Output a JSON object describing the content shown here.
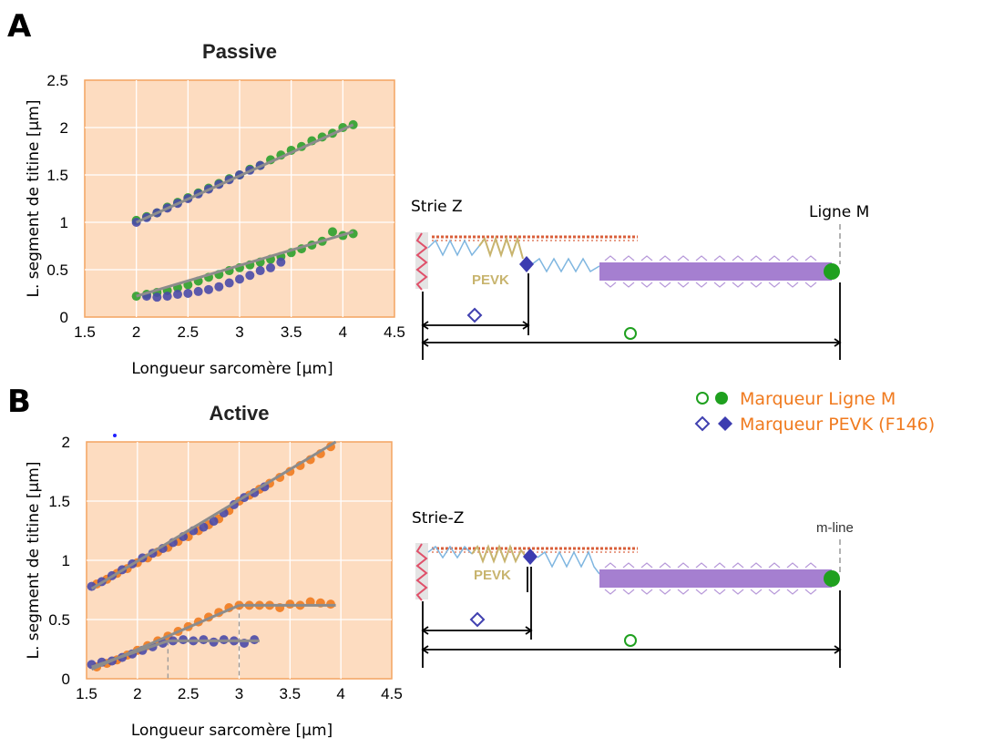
{
  "panels": {
    "a_label": "A",
    "b_label": "B"
  },
  "colors": {
    "plot_bg": "#fddcc0",
    "plot_border": "#f4a460",
    "grid": "#ffffff",
    "green": "#2ca02c",
    "blue": "#4a4aa8",
    "orange": "#f07a1e",
    "fit_line": "#8c8c8c",
    "thick_filament": "#a57fd0",
    "actin": "#d9603b",
    "spring": "#7fb6e0",
    "pevk": "#c8b46e",
    "zdisc": "#e0506a",
    "legend_text": "#f07a1e"
  },
  "chart_data": [
    {
      "type": "scatter",
      "title": "Passive",
      "xlabel": "Longueur sarcomère [μm]",
      "ylabel": "L. segment de titine [μm]",
      "xlim": [
        1.5,
        4.5
      ],
      "ylim": [
        0,
        2.5
      ],
      "xticks": [
        "1.5",
        "2",
        "2.5",
        "3",
        "3.5",
        "4",
        "4.5"
      ],
      "yticks": [
        "0",
        "0.5",
        "1",
        "1.5",
        "2",
        "2.5"
      ],
      "grid": true,
      "series": [
        {
          "marker": "green",
          "x": [
            2.0,
            2.1,
            2.2,
            2.3,
            2.4,
            2.5,
            2.6,
            2.7,
            2.8,
            2.9,
            3.0,
            3.1,
            3.2,
            3.3,
            3.4,
            3.5,
            3.6,
            3.7,
            3.8,
            3.9,
            4.0,
            4.1
          ],
          "y": [
            1.02,
            1.06,
            1.1,
            1.16,
            1.21,
            1.26,
            1.31,
            1.36,
            1.41,
            1.46,
            1.5,
            1.56,
            1.6,
            1.66,
            1.71,
            1.76,
            1.8,
            1.86,
            1.9,
            1.94,
            2.0,
            2.03
          ]
        },
        {
          "marker": "blue",
          "x": [
            2.0,
            2.1,
            2.2,
            2.3,
            2.4,
            2.5,
            2.6,
            2.7,
            2.8,
            2.9,
            3.0,
            3.1,
            3.2
          ],
          "y": [
            1.0,
            1.05,
            1.1,
            1.15,
            1.2,
            1.25,
            1.3,
            1.35,
            1.4,
            1.45,
            1.5,
            1.55,
            1.6
          ]
        },
        {
          "marker": "green",
          "x": [
            2.0,
            2.1,
            2.2,
            2.3,
            2.4,
            2.5,
            2.6,
            2.7,
            2.8,
            2.9,
            3.0,
            3.1,
            3.2,
            3.3,
            3.4,
            3.5,
            3.6,
            3.7,
            3.8,
            3.9,
            4.0,
            4.1
          ],
          "y": [
            0.22,
            0.24,
            0.26,
            0.28,
            0.31,
            0.34,
            0.38,
            0.42,
            0.45,
            0.49,
            0.52,
            0.55,
            0.58,
            0.61,
            0.64,
            0.68,
            0.72,
            0.76,
            0.8,
            0.9,
            0.86,
            0.88
          ]
        },
        {
          "marker": "blue",
          "x": [
            2.1,
            2.2,
            2.3,
            2.4,
            2.5,
            2.6,
            2.7,
            2.8,
            2.9,
            3.0,
            3.1,
            3.2,
            3.3,
            3.4
          ],
          "y": [
            0.22,
            0.21,
            0.22,
            0.24,
            0.25,
            0.27,
            0.29,
            0.32,
            0.36,
            0.4,
            0.44,
            0.49,
            0.52,
            0.58
          ]
        }
      ],
      "fit_lines": [
        {
          "x": [
            2.0,
            4.1
          ],
          "y": [
            1.0,
            2.03
          ]
        },
        {
          "x": [
            2.0,
            4.1
          ],
          "y": [
            0.22,
            0.9
          ]
        }
      ]
    },
    {
      "type": "scatter",
      "title": "Active",
      "xlabel": "Longueur sarcomère [μm]",
      "ylabel": "L. segment de titine [μm]",
      "xlim": [
        1.5,
        4.5
      ],
      "ylim": [
        0,
        2
      ],
      "xticks": [
        "1.5",
        "2",
        "2.5",
        "3",
        "3.5",
        "4",
        "4.5"
      ],
      "yticks": [
        "0",
        "0.5",
        "1",
        "1.5",
        "2"
      ],
      "grid": true,
      "series": [
        {
          "marker": "orange",
          "x": [
            1.6,
            1.7,
            1.8,
            1.9,
            2.0,
            2.1,
            2.2,
            2.3,
            2.4,
            2.5,
            2.6,
            2.7,
            2.8,
            2.9,
            3.0,
            3.1,
            3.2,
            3.3,
            3.4,
            3.5,
            3.6,
            3.7,
            3.8,
            3.9
          ],
          "y": [
            0.8,
            0.84,
            0.89,
            0.93,
            0.98,
            1.02,
            1.07,
            1.11,
            1.16,
            1.2,
            1.25,
            1.3,
            1.35,
            1.42,
            1.5,
            1.55,
            1.6,
            1.65,
            1.7,
            1.75,
            1.8,
            1.85,
            1.9,
            1.96
          ]
        },
        {
          "marker": "blue",
          "x": [
            1.55,
            1.65,
            1.75,
            1.85,
            1.95,
            2.05,
            2.15,
            2.25,
            2.35,
            2.45,
            2.55,
            2.65,
            2.75,
            2.85,
            2.95,
            3.05,
            3.15,
            3.25
          ],
          "y": [
            0.78,
            0.82,
            0.87,
            0.92,
            0.97,
            1.02,
            1.06,
            1.1,
            1.15,
            1.2,
            1.25,
            1.28,
            1.33,
            1.4,
            1.47,
            1.53,
            1.57,
            1.62
          ]
        },
        {
          "marker": "orange",
          "x": [
            1.6,
            1.7,
            1.8,
            1.9,
            2.0,
            2.1,
            2.2,
            2.3,
            2.4,
            2.5,
            2.6,
            2.7,
            2.8,
            2.9,
            3.0,
            3.1,
            3.2,
            3.3,
            3.4,
            3.5,
            3.6,
            3.7,
            3.8,
            3.9
          ],
          "y": [
            0.1,
            0.13,
            0.16,
            0.2,
            0.24,
            0.28,
            0.32,
            0.36,
            0.4,
            0.44,
            0.48,
            0.52,
            0.56,
            0.6,
            0.62,
            0.62,
            0.62,
            0.62,
            0.6,
            0.63,
            0.62,
            0.65,
            0.64,
            0.63
          ]
        },
        {
          "marker": "blue",
          "x": [
            1.55,
            1.65,
            1.75,
            1.85,
            1.95,
            2.05,
            2.15,
            2.25,
            2.35,
            2.45,
            2.55,
            2.65,
            2.75,
            2.85,
            2.95,
            3.05,
            3.15
          ],
          "y": [
            0.12,
            0.14,
            0.15,
            0.18,
            0.21,
            0.24,
            0.27,
            0.3,
            0.32,
            0.33,
            0.32,
            0.33,
            0.31,
            0.33,
            0.32,
            0.3,
            0.33
          ]
        }
      ],
      "fit_lines": [
        {
          "x": [
            1.55,
            3.95
          ],
          "y": [
            0.76,
            2.0
          ]
        },
        {
          "x": [
            1.55,
            3.0
          ],
          "y": [
            0.08,
            0.62
          ]
        },
        {
          "x": [
            3.0,
            3.95
          ],
          "y": [
            0.62,
            0.62
          ]
        },
        {
          "x": [
            1.55,
            2.3
          ],
          "y": [
            0.1,
            0.32
          ]
        },
        {
          "x": [
            2.3,
            3.2
          ],
          "y": [
            0.32,
            0.32
          ]
        }
      ],
      "dashed_markers": [
        {
          "x": 2.3,
          "y_top": 0.32
        },
        {
          "x": 3.0,
          "y_top": 0.62
        }
      ]
    }
  ],
  "diagram": {
    "top": {
      "zdisc_label": "Strie Z",
      "pevk_label": "PEVK",
      "mline_label": "Ligne M"
    },
    "bottom": {
      "zdisc_label": "Strie-Z",
      "pevk_label": "PEVK",
      "mline_label": "m-line"
    }
  },
  "legend": {
    "mline_marker": "Marqueur Ligne M",
    "pevk_marker": "Marqueur PEVK (F146)"
  }
}
